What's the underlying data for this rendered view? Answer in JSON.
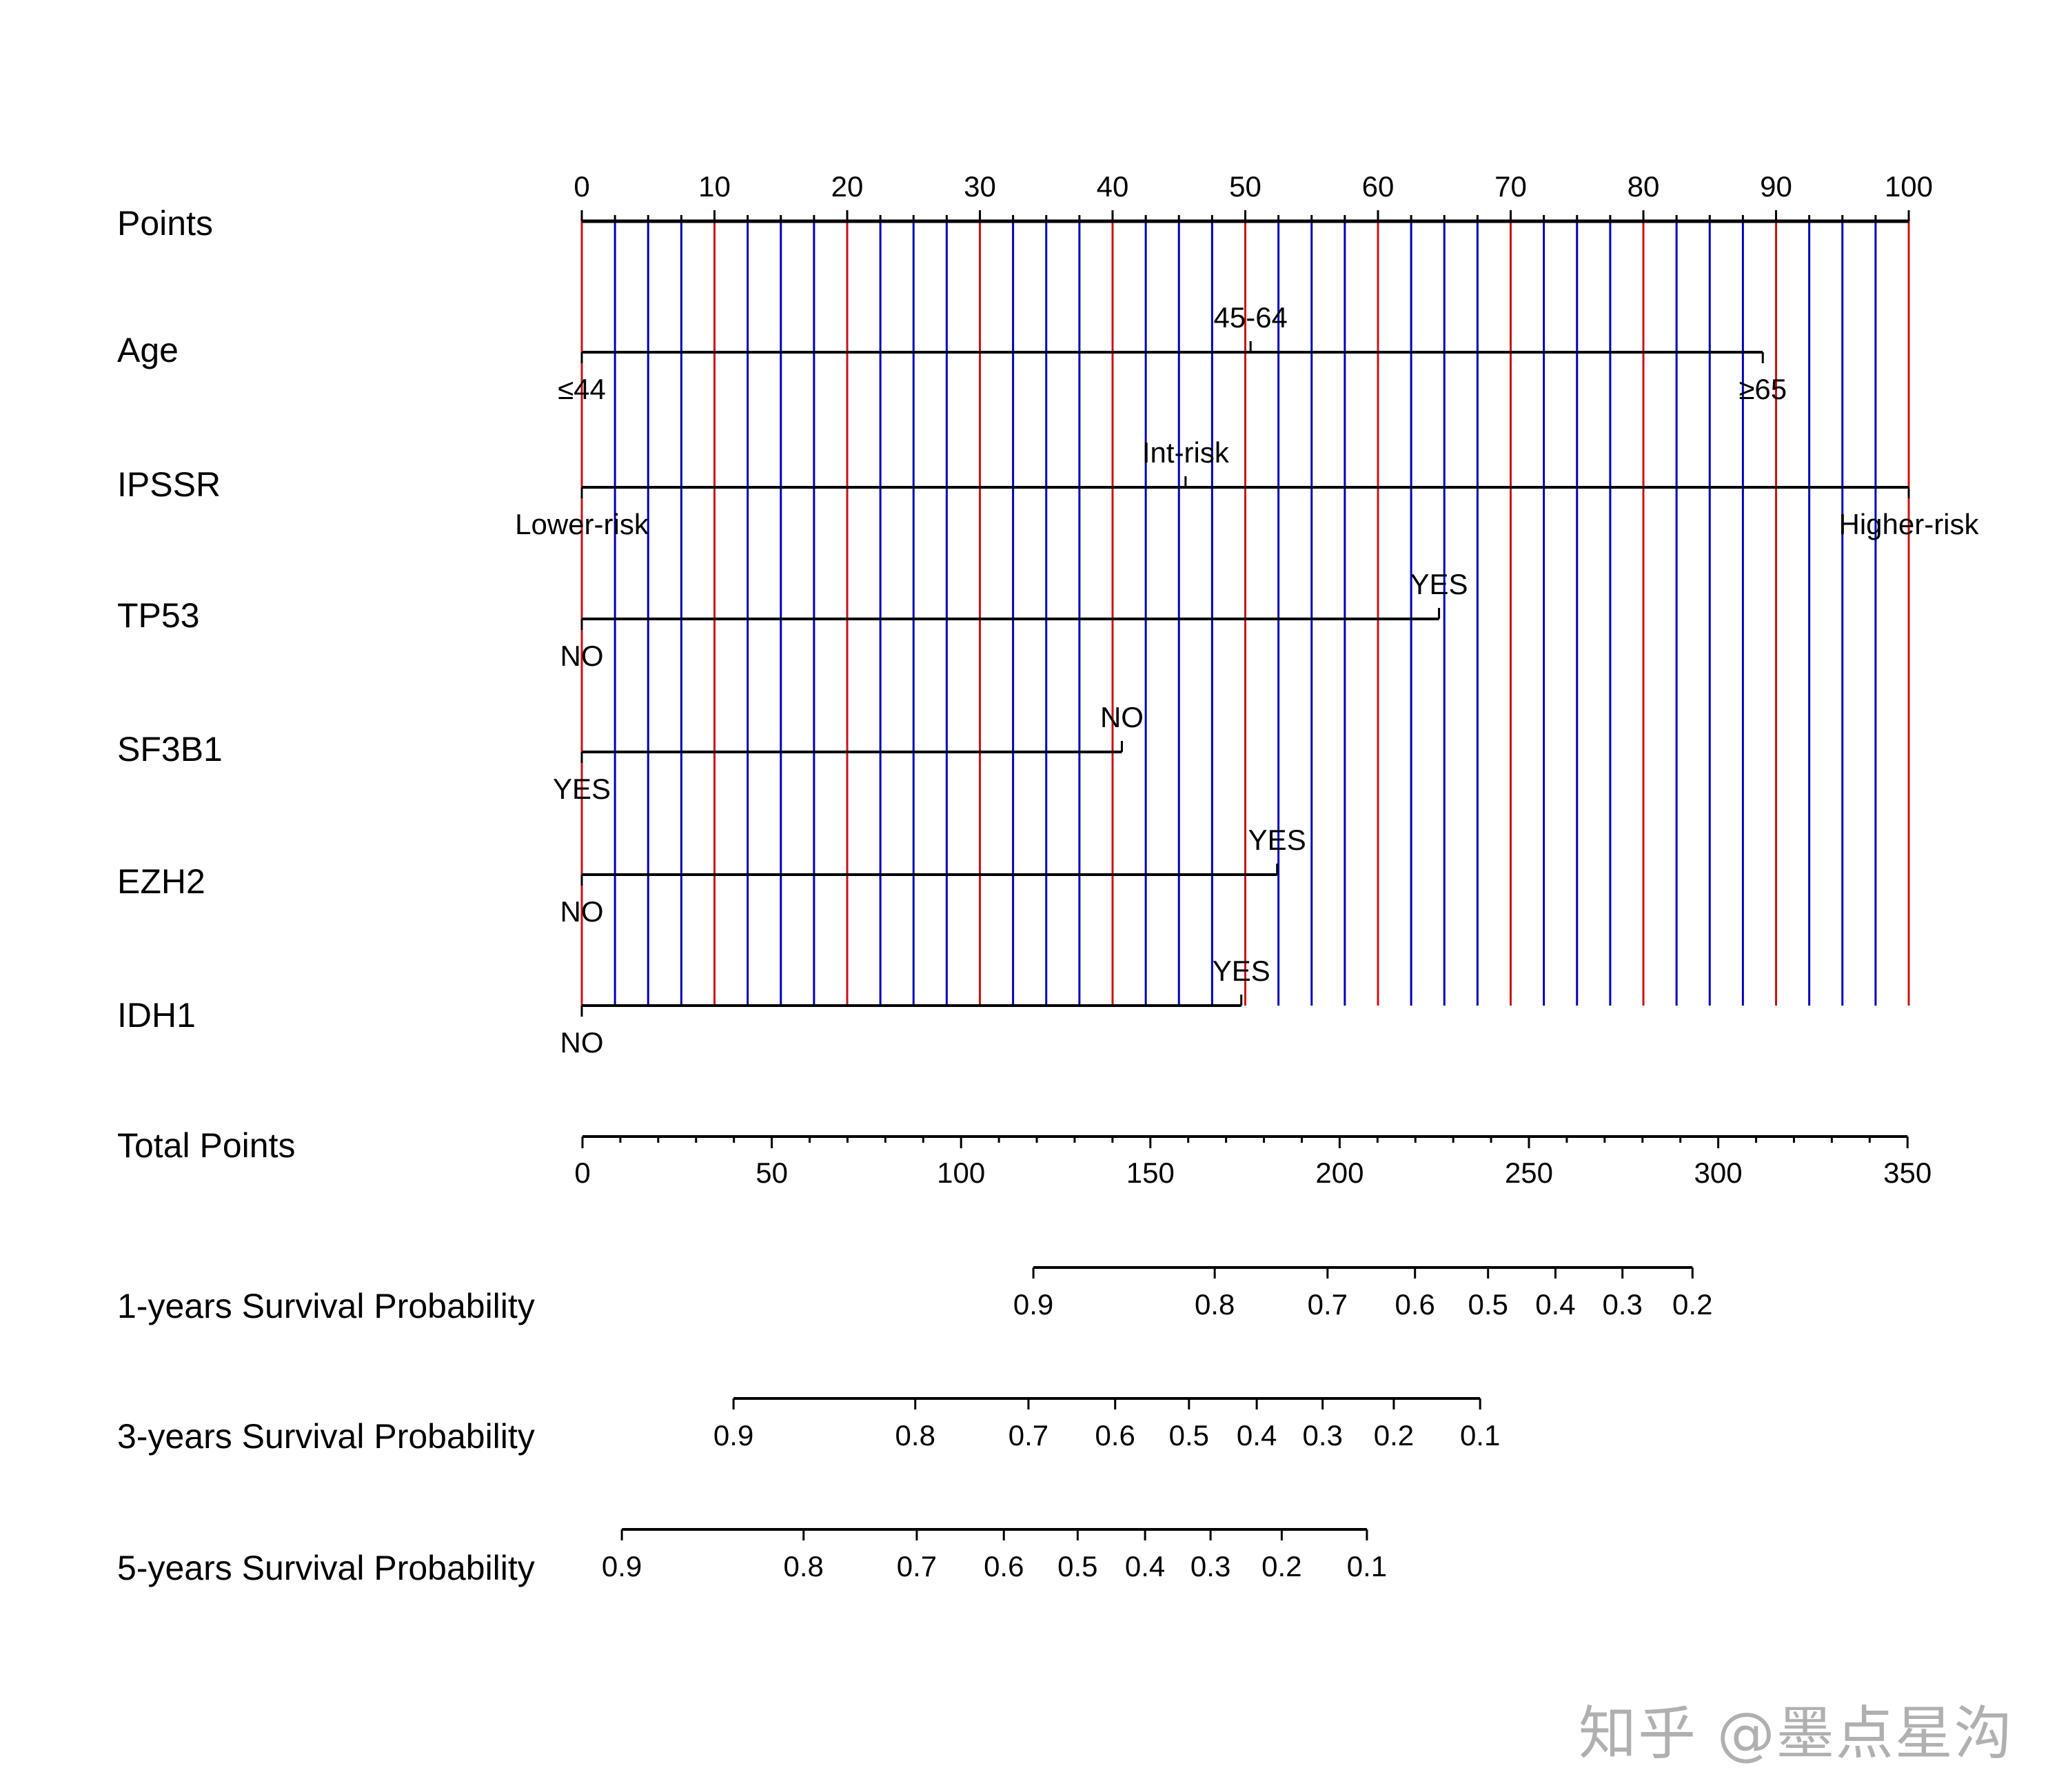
{
  "chart_data": {
    "type": "nomogram",
    "title": "",
    "points_axis": {
      "label": "Points",
      "range": [
        0,
        100
      ],
      "ticks": [
        0,
        10,
        20,
        30,
        40,
        50,
        60,
        70,
        80,
        90,
        100
      ],
      "minor_step": 2.5,
      "grid_major_color": "#cc1111",
      "grid_minor_color": "#0000bb"
    },
    "variables": [
      {
        "name": "Age",
        "levels": [
          {
            "label": "≤44",
            "points": 0,
            "pos": "below"
          },
          {
            "label": "45-64",
            "points": 50.4,
            "pos": "above"
          },
          {
            "label": "≥65",
            "points": 89.0,
            "pos": "below"
          }
        ]
      },
      {
        "name": "IPSSR",
        "levels": [
          {
            "label": "Lower-risk",
            "points": 0,
            "pos": "below"
          },
          {
            "label": "Int-risk",
            "points": 45.5,
            "pos": "above"
          },
          {
            "label": "Higher-risk",
            "points": 100,
            "pos": "below"
          }
        ]
      },
      {
        "name": "TP53",
        "levels": [
          {
            "label": "NO",
            "points": 0,
            "pos": "below"
          },
          {
            "label": "YES",
            "points": 64.6,
            "pos": "above"
          }
        ]
      },
      {
        "name": "SF3B1",
        "levels": [
          {
            "label": "YES",
            "points": 0,
            "pos": "below"
          },
          {
            "label": "NO",
            "points": 40.7,
            "pos": "above"
          }
        ]
      },
      {
        "name": "EZH2",
        "levels": [
          {
            "label": "NO",
            "points": 0,
            "pos": "below"
          },
          {
            "label": "YES",
            "points": 52.4,
            "pos": "above"
          }
        ]
      },
      {
        "name": "IDH1",
        "levels": [
          {
            "label": "NO",
            "points": 0,
            "pos": "below"
          },
          {
            "label": "YES",
            "points": 49.7,
            "pos": "above"
          }
        ]
      }
    ],
    "total_points_axis": {
      "label": "Total Points",
      "range": [
        0,
        350
      ],
      "ticks": [
        0,
        50,
        100,
        150,
        200,
        250,
        300,
        350
      ],
      "minor_step": 10
    },
    "survival_axes": [
      {
        "label": "1-years Survival Probability",
        "ticks": [
          {
            "label": "0.9",
            "total_points": 119.1
          },
          {
            "label": "0.8",
            "total_points": 167.0
          },
          {
            "label": "0.7",
            "total_points": 196.8
          },
          {
            "label": "0.6",
            "total_points": 219.9
          },
          {
            "label": "0.5",
            "total_points": 239.2
          },
          {
            "label": "0.4",
            "total_points": 257.0
          },
          {
            "label": "0.3",
            "total_points": 274.7
          },
          {
            "label": "0.2",
            "total_points": 293.2
          }
        ]
      },
      {
        "label": "3-years Survival Probability",
        "ticks": [
          {
            "label": "0.9",
            "total_points": 39.9
          },
          {
            "label": "0.8",
            "total_points": 87.9
          },
          {
            "label": "0.7",
            "total_points": 117.8
          },
          {
            "label": "0.6",
            "total_points": 140.7
          },
          {
            "label": "0.5",
            "total_points": 160.2
          },
          {
            "label": "0.4",
            "total_points": 178.1
          },
          {
            "label": "0.3",
            "total_points": 195.5
          },
          {
            "label": "0.2",
            "total_points": 214.3
          },
          {
            "label": "0.1",
            "total_points": 237.1
          }
        ]
      },
      {
        "label": "5-years Survival Probability",
        "ticks": [
          {
            "label": "0.9",
            "total_points": 10.4
          },
          {
            "label": "0.8",
            "total_points": 58.4
          },
          {
            "label": "0.7",
            "total_points": 88.3
          },
          {
            "label": "0.6",
            "total_points": 111.3
          },
          {
            "label": "0.5",
            "total_points": 130.8
          },
          {
            "label": "0.4",
            "total_points": 148.6
          },
          {
            "label": "0.3",
            "total_points": 165.9
          },
          {
            "label": "0.2",
            "total_points": 184.7
          },
          {
            "label": "0.1",
            "total_points": 207.2
          }
        ]
      }
    ]
  },
  "watermark": "知乎 @墨点星沟"
}
